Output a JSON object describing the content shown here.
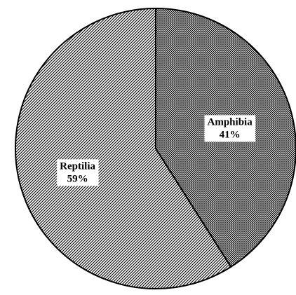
{
  "chart_data": {
    "type": "pie",
    "title": "",
    "slices": [
      {
        "label": "Amphibia",
        "value": 41,
        "value_label": "41%",
        "pattern": "crosshatch"
      },
      {
        "label": "Reptilia",
        "value": 59,
        "value_label": "59%",
        "pattern": "diagonal-lines"
      }
    ],
    "start_angle": "12 o'clock",
    "direction": "clockwise",
    "legend": "none",
    "colors": {
      "outline": "#000000",
      "hatch": "#000000",
      "background": "#ffffff"
    }
  }
}
